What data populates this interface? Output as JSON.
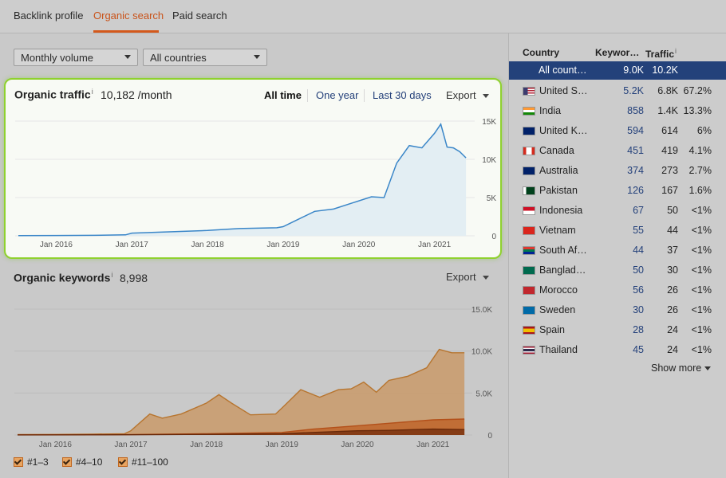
{
  "tabs": [
    {
      "label": "Backlink profile"
    },
    {
      "label": "Organic search"
    },
    {
      "label": "Paid search"
    }
  ],
  "filters": {
    "volume": "Monthly volume",
    "country": "All countries"
  },
  "traffic_card": {
    "title": "Organic traffic",
    "info": "i",
    "value": "10,182 /month",
    "ranges": [
      "All time",
      "One year",
      "Last 30 days"
    ],
    "selected_range": "All time",
    "export": "Export"
  },
  "keywords_section": {
    "title": "Organic keywords",
    "info": "i",
    "value": "8,998",
    "export": "Export"
  },
  "legend": [
    {
      "label": "#1–3"
    },
    {
      "label": "#4–10"
    },
    {
      "label": "#11–100"
    }
  ],
  "country_table": {
    "headers": {
      "country": "Country",
      "keywords": "Keywor…",
      "traffic": "Traffic",
      "info": "i"
    },
    "selected": {
      "name": "All count…",
      "keywords": "9.0K",
      "traffic": "10.2K"
    },
    "rows": [
      {
        "name": "United S…",
        "keywords": "5.2K",
        "traffic": "6.8K",
        "percent": "67.2%",
        "flag": "us"
      },
      {
        "name": "India",
        "keywords": "858",
        "traffic": "1.4K",
        "percent": "13.3%",
        "flag": "in"
      },
      {
        "name": "United K…",
        "keywords": "594",
        "traffic": "614",
        "percent": "6%",
        "flag": "gb"
      },
      {
        "name": "Canada",
        "keywords": "451",
        "traffic": "419",
        "percent": "4.1%",
        "flag": "ca"
      },
      {
        "name": "Australia",
        "keywords": "374",
        "traffic": "273",
        "percent": "2.7%",
        "flag": "au"
      },
      {
        "name": "Pakistan",
        "keywords": "126",
        "traffic": "167",
        "percent": "1.6%",
        "flag": "pk"
      },
      {
        "name": "Indonesia",
        "keywords": "67",
        "traffic": "50",
        "percent": "<1%",
        "flag": "id"
      },
      {
        "name": "Vietnam",
        "keywords": "55",
        "traffic": "44",
        "percent": "<1%",
        "flag": "vn"
      },
      {
        "name": "South Af…",
        "keywords": "44",
        "traffic": "37",
        "percent": "<1%",
        "flag": "za"
      },
      {
        "name": "Banglad…",
        "keywords": "50",
        "traffic": "30",
        "percent": "<1%",
        "flag": "bd"
      },
      {
        "name": "Morocco",
        "keywords": "56",
        "traffic": "26",
        "percent": "<1%",
        "flag": "ma"
      },
      {
        "name": "Sweden",
        "keywords": "30",
        "traffic": "26",
        "percent": "<1%",
        "flag": "se"
      },
      {
        "name": "Spain",
        "keywords": "28",
        "traffic": "24",
        "percent": "<1%",
        "flag": "es"
      },
      {
        "name": "Thailand",
        "keywords": "45",
        "traffic": "24",
        "percent": "<1%",
        "flag": "th"
      }
    ],
    "show_more": "Show more"
  },
  "colors": {
    "accent": "#d4591c",
    "link": "#24407a",
    "traffic_line": "#3a86c8",
    "highlight_border": "#8fd12e",
    "kw_top3": "#7a3410",
    "kw_4_10": "#c75a14",
    "kw_11_100": "#e8a460"
  },
  "chart_data": [
    {
      "type": "line",
      "title": "Organic traffic",
      "x_ticks": [
        "Jan 2016",
        "Jan 2017",
        "Jan 2018",
        "Jan 2019",
        "Jan 2020",
        "Jan 2021"
      ],
      "y_ticks": [
        "15K",
        "10K",
        "5K",
        "0"
      ],
      "ylim": [
        0,
        15000
      ],
      "series": [
        {
          "values": [
            [
              "2015-07",
              30
            ],
            [
              "2016-01",
              40
            ],
            [
              "2016-07",
              60
            ],
            [
              "2016-12",
              120
            ],
            [
              "2017-01",
              350
            ],
            [
              "2017-06",
              500
            ],
            [
              "2018-01",
              700
            ],
            [
              "2018-06",
              950
            ],
            [
              "2018-12",
              1050
            ],
            [
              "2019-01",
              1200
            ],
            [
              "2019-03",
              2000
            ],
            [
              "2019-06",
              3200
            ],
            [
              "2019-09",
              3500
            ],
            [
              "2019-12",
              4300
            ],
            [
              "2020-03",
              5100
            ],
            [
              "2020-05",
              5000
            ],
            [
              "2020-07",
              9500
            ],
            [
              "2020-09",
              11800
            ],
            [
              "2020-11",
              11500
            ],
            [
              "2021-01",
              13400
            ],
            [
              "2021-02",
              14600
            ],
            [
              "2021-03",
              11600
            ],
            [
              "2021-04",
              11500
            ],
            [
              "2021-05",
              11000
            ],
            [
              "2021-06",
              10200
            ]
          ]
        }
      ]
    },
    {
      "type": "area",
      "title": "Organic keywords",
      "x_ticks": [
        "Jan 2016",
        "Jan 2017",
        "Jan 2018",
        "Jan 2019",
        "Jan 2020",
        "Jan 2021"
      ],
      "y_ticks": [
        "15.0K",
        "10.0K",
        "5.0K",
        "0"
      ],
      "ylim": [
        0,
        15000
      ],
      "series": [
        {
          "name": "#11–100",
          "values": [
            [
              "2015-07",
              50
            ],
            [
              "2016-01",
              70
            ],
            [
              "2016-07",
              100
            ],
            [
              "2016-12",
              150
            ],
            [
              "2017-01",
              500
            ],
            [
              "2017-04",
              2500
            ],
            [
              "2017-06",
              2000
            ],
            [
              "2017-09",
              2500
            ],
            [
              "2018-01",
              3800
            ],
            [
              "2018-03",
              4800
            ],
            [
              "2018-05",
              3800
            ],
            [
              "2018-08",
              2400
            ],
            [
              "2018-12",
              2500
            ],
            [
              "2019-01",
              3200
            ],
            [
              "2019-04",
              5400
            ],
            [
              "2019-07",
              4500
            ],
            [
              "2019-10",
              5400
            ],
            [
              "2019-12",
              5500
            ],
            [
              "2020-02",
              6300
            ],
            [
              "2020-04",
              5100
            ],
            [
              "2020-06",
              6500
            ],
            [
              "2020-09",
              7000
            ],
            [
              "2020-12",
              8000
            ],
            [
              "2021-02",
              10200
            ],
            [
              "2021-04",
              9800
            ],
            [
              "2021-06",
              9800
            ]
          ]
        },
        {
          "name": "#4–10",
          "values": [
            [
              "2015-07",
              20
            ],
            [
              "2016-07",
              40
            ],
            [
              "2017-01",
              60
            ],
            [
              "2018-01",
              150
            ],
            [
              "2019-01",
              300
            ],
            [
              "2019-06",
              700
            ],
            [
              "2020-01",
              1100
            ],
            [
              "2020-06",
              1400
            ],
            [
              "2021-01",
              1800
            ],
            [
              "2021-06",
              1900
            ]
          ]
        },
        {
          "name": "#1–3",
          "values": [
            [
              "2015-07",
              10
            ],
            [
              "2016-07",
              20
            ],
            [
              "2017-01",
              30
            ],
            [
              "2018-01",
              80
            ],
            [
              "2019-01",
              150
            ],
            [
              "2019-06",
              300
            ],
            [
              "2020-01",
              500
            ],
            [
              "2020-06",
              550
            ],
            [
              "2021-01",
              700
            ],
            [
              "2021-06",
              650
            ]
          ]
        }
      ]
    }
  ]
}
